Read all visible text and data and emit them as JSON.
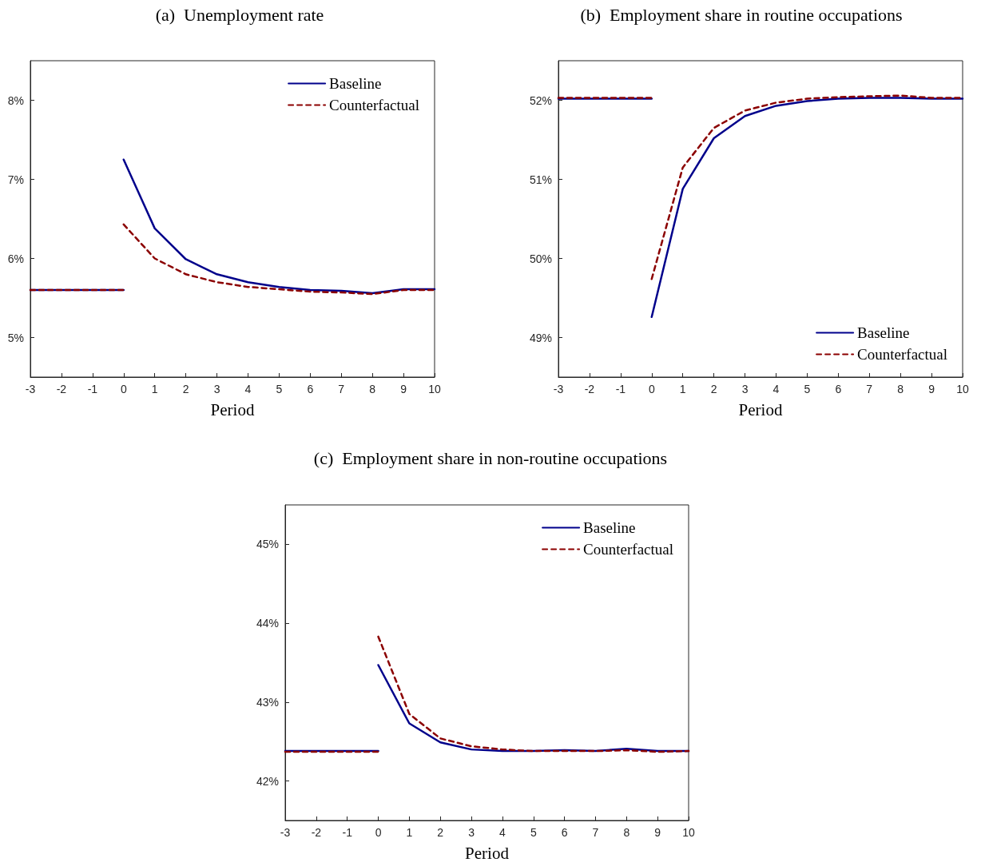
{
  "chart_data": [
    {
      "type": "line",
      "title": "(a)  Unemployment rate",
      "xlabel": "Period",
      "xlim": [
        -3,
        10
      ],
      "xticks": [
        -3,
        -2,
        -1,
        0,
        1,
        2,
        3,
        4,
        5,
        6,
        7,
        8,
        9,
        10
      ],
      "ylim": [
        4.5,
        8.5
      ],
      "yticks": [
        {
          "value": 5,
          "label": "5%"
        },
        {
          "value": 6,
          "label": "6%"
        },
        {
          "value": 7,
          "label": "7%"
        },
        {
          "value": 8,
          "label": "8%"
        }
      ],
      "grid": false,
      "legend": "top right",
      "marker": "none",
      "x": [
        -3,
        -2,
        -1,
        0,
        0,
        1,
        2,
        3,
        4,
        5,
        6,
        7,
        8,
        9,
        10
      ],
      "series": [
        {
          "name": "Baseline",
          "color": "#00008b",
          "line_style": "solid",
          "values": [
            5.6,
            5.6,
            5.6,
            5.6,
            7.25,
            6.38,
            5.99,
            5.8,
            5.7,
            5.64,
            5.6,
            5.59,
            5.56,
            5.61,
            5.61
          ]
        },
        {
          "name": "Counterfactual",
          "color": "#8b0000",
          "line_style": "dashed",
          "values": [
            5.6,
            5.6,
            5.6,
            5.6,
            6.43,
            6.0,
            5.8,
            5.7,
            5.64,
            5.61,
            5.58,
            5.57,
            5.55,
            5.6,
            5.6
          ]
        }
      ]
    },
    {
      "type": "line",
      "title": "(b)  Employment share in routine occupations",
      "xlabel": "Period",
      "xlim": [
        -3,
        10
      ],
      "xticks": [
        -3,
        -2,
        -1,
        0,
        1,
        2,
        3,
        4,
        5,
        6,
        7,
        8,
        9,
        10
      ],
      "ylim": [
        48.5,
        52.5
      ],
      "yticks": [
        {
          "value": 49,
          "label": "49%"
        },
        {
          "value": 50,
          "label": "50%"
        },
        {
          "value": 51,
          "label": "51%"
        },
        {
          "value": 52,
          "label": "52%"
        }
      ],
      "grid": false,
      "legend": "bottom right",
      "marker": "none",
      "x": [
        -3,
        -2,
        -1,
        0,
        0,
        1,
        2,
        3,
        4,
        5,
        6,
        7,
        8,
        9,
        10
      ],
      "series": [
        {
          "name": "Baseline",
          "color": "#00008b",
          "line_style": "solid",
          "values": [
            52.02,
            52.02,
            52.02,
            52.02,
            49.26,
            50.88,
            51.52,
            51.8,
            51.93,
            51.99,
            52.02,
            52.03,
            52.03,
            52.02,
            52.02
          ]
        },
        {
          "name": "Counterfactual",
          "color": "#8b0000",
          "line_style": "dashed",
          "values": [
            52.03,
            52.03,
            52.03,
            52.03,
            49.74,
            51.15,
            51.65,
            51.87,
            51.97,
            52.02,
            52.04,
            52.05,
            52.06,
            52.03,
            52.03
          ]
        }
      ]
    },
    {
      "type": "line",
      "title": "(c)  Employment share in non-routine occupations",
      "xlabel": "Period",
      "xlim": [
        -3,
        10
      ],
      "xticks": [
        -3,
        -2,
        -1,
        0,
        1,
        2,
        3,
        4,
        5,
        6,
        7,
        8,
        9,
        10
      ],
      "ylim": [
        41.5,
        45.5
      ],
      "yticks": [
        {
          "value": 42,
          "label": "42%"
        },
        {
          "value": 43,
          "label": "43%"
        },
        {
          "value": 44,
          "label": "44%"
        },
        {
          "value": 45,
          "label": "45%"
        }
      ],
      "grid": false,
      "legend": "top right",
      "marker": "none",
      "x": [
        -3,
        -2,
        -1,
        0,
        0,
        1,
        2,
        3,
        4,
        5,
        6,
        7,
        8,
        9,
        10
      ],
      "series": [
        {
          "name": "Baseline",
          "color": "#00008b",
          "line_style": "solid",
          "values": [
            42.38,
            42.38,
            42.38,
            42.38,
            43.47,
            42.73,
            42.49,
            42.4,
            42.38,
            42.38,
            42.39,
            42.38,
            42.41,
            42.38,
            42.38
          ]
        },
        {
          "name": "Counterfactual",
          "color": "#8b0000",
          "line_style": "dashed",
          "values": [
            42.37,
            42.37,
            42.37,
            42.37,
            43.83,
            42.85,
            42.54,
            42.44,
            42.4,
            42.38,
            42.38,
            42.38,
            42.39,
            42.37,
            42.38
          ]
        }
      ]
    }
  ]
}
